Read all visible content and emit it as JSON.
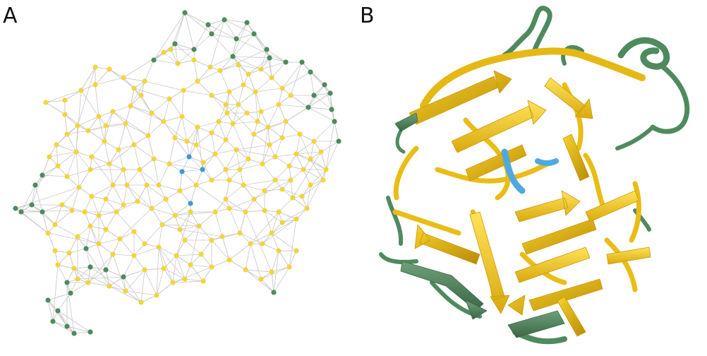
{
  "panels": {
    "a": {
      "label": "A"
    },
    "b": {
      "label": "B"
    }
  },
  "colors": {
    "yellow": "#f2d53c",
    "green": "#4e8a5d",
    "blue": "#3d9ad8",
    "edge": "#c8c8c8",
    "ribbon_yellow": "#f2c417",
    "ribbon_yellow_dark": "#c99a0c",
    "ribbon_green": "#5a8c66",
    "ribbon_green_dark": "#3e6b4a",
    "ribbon_blue": "#4fa9de"
  }
}
